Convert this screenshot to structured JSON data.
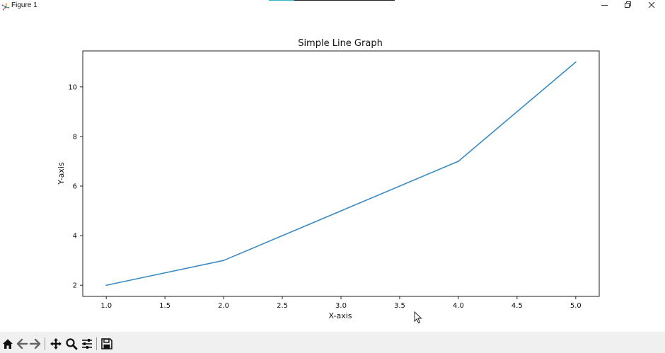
{
  "window": {
    "title": "Figure 1",
    "icon": "matplotlib-logo-icon",
    "controls": [
      "minimize-icon",
      "restore-icon",
      "close-icon"
    ]
  },
  "toolbar": {
    "buttons": [
      "home-icon",
      "back-arrow-icon",
      "forward-arrow-icon",
      "pan-icon",
      "zoom-icon",
      "configure-subplots-icon",
      "save-icon"
    ]
  },
  "chart_data": {
    "type": "line",
    "title": "Simple Line Graph",
    "xlabel": "X-axis",
    "ylabel": "Y-axis",
    "x": [
      1,
      2,
      3,
      4,
      5
    ],
    "series": [
      {
        "values": [
          2,
          3,
          5,
          7,
          11
        ],
        "color": "#3b8bc2"
      }
    ],
    "xlim": [
      0.8,
      5.2
    ],
    "ylim": [
      1.55,
      11.45
    ],
    "xticks": [
      "1.0",
      "1.5",
      "2.0",
      "2.5",
      "3.0",
      "3.5",
      "4.0",
      "4.5",
      "5.0"
    ],
    "yticks": [
      "2",
      "4",
      "6",
      "8",
      "10"
    ],
    "grid": false,
    "legend": "none"
  }
}
